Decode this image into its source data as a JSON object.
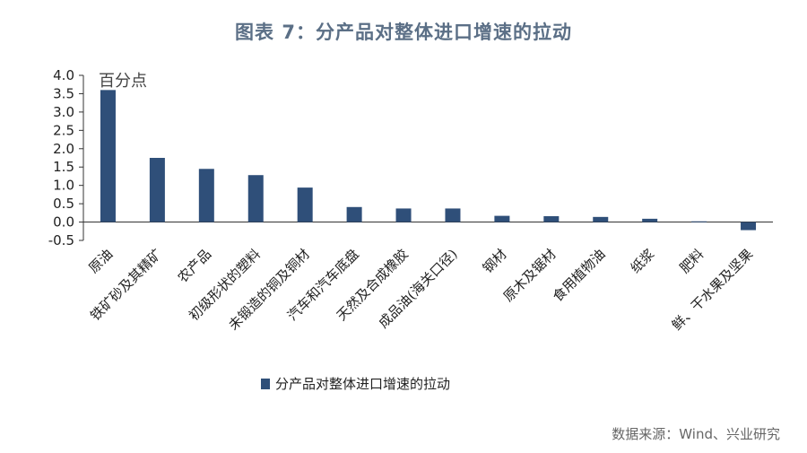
{
  "title": "图表 7：分产品对整体进口增速的拉动",
  "source": "数据来源：Wind、兴业研究",
  "colors": {
    "bar": "#2f4f79",
    "axis": "#333333",
    "title": "#5b6f86"
  },
  "chart_data": {
    "type": "bar",
    "title": "图表 7：分产品对整体进口增速的拉动",
    "ylabel": "百分点",
    "ylim": [
      -0.5,
      4.0
    ],
    "yticks": [
      "4.0",
      "3.5",
      "3.0",
      "2.5",
      "2.0",
      "1.5",
      "1.0",
      "0.5",
      "0.0",
      "-0.5"
    ],
    "grid": false,
    "legend_position": "bottom-center",
    "categories": [
      "原油",
      "铁矿砂及其精矿",
      "农产品",
      "初级形状的塑料",
      "未锻造的铜及铜材",
      "汽车和汽车底盘",
      "天然及合成橡胶",
      "成品油(海关口径)",
      "钢材",
      "原木及锯材",
      "食用植物油",
      "纸浆",
      "肥料",
      "鲜、干水果及坚果"
    ],
    "series": [
      {
        "name": "分产品对整体进口增速的拉动",
        "values": [
          3.6,
          1.75,
          1.45,
          1.28,
          0.94,
          0.41,
          0.37,
          0.37,
          0.17,
          0.16,
          0.14,
          0.09,
          0.02,
          -0.22
        ]
      }
    ]
  }
}
